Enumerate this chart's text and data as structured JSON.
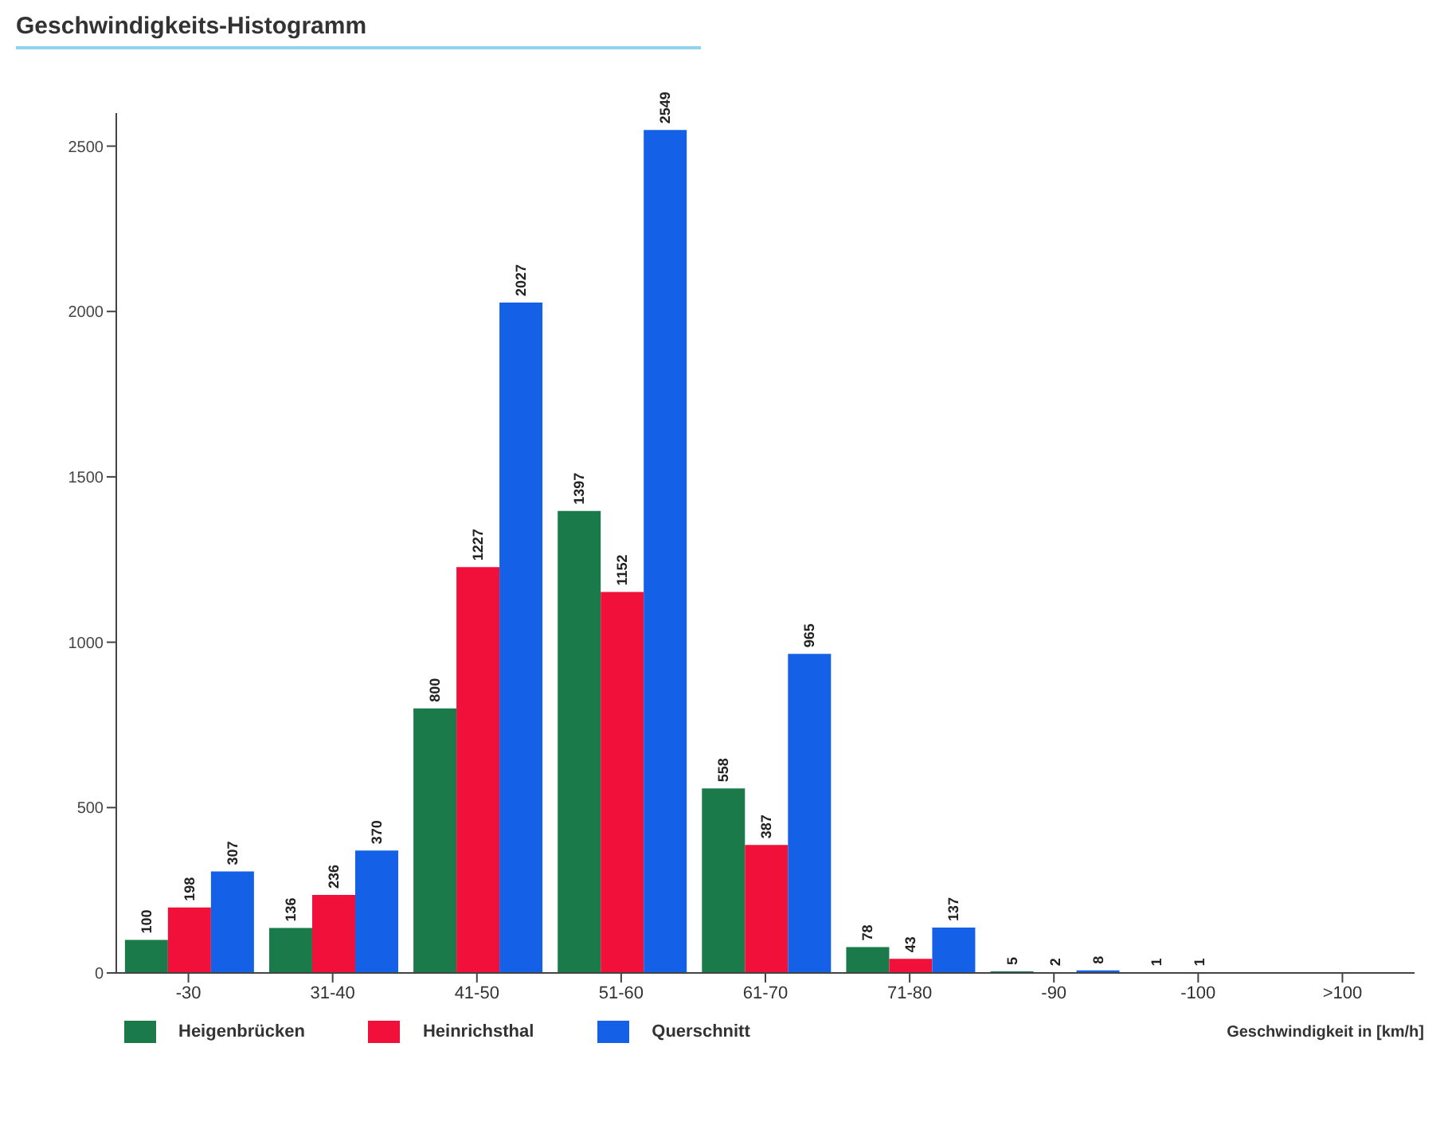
{
  "chart_data": {
    "type": "bar",
    "title": "Geschwindigkeits-Histogramm",
    "xlabel": "Geschwindigkeit in [km/h]",
    "categories": [
      "-30",
      "31-40",
      "41-50",
      "51-60",
      "61-70",
      "71-80",
      "-90",
      "-100",
      ">100"
    ],
    "series": [
      {
        "name": "Heigenbrücken",
        "color": "#1a7a4a",
        "values": [
          100,
          136,
          800,
          1397,
          558,
          78,
          5,
          1,
          null
        ]
      },
      {
        "name": "Heinrichsthal",
        "color": "#f0103a",
        "values": [
          198,
          236,
          1227,
          1152,
          387,
          43,
          2,
          1,
          null
        ]
      },
      {
        "name": "Querschnitt",
        "color": "#1460e6",
        "values": [
          307,
          370,
          2027,
          2549,
          965,
          137,
          8,
          null,
          null
        ]
      }
    ],
    "ylim": [
      0,
      2600
    ],
    "yticks": [
      0,
      500,
      1000,
      1500,
      2000,
      2500
    ],
    "data_labels": true,
    "legend": "bottom",
    "grid": false
  }
}
